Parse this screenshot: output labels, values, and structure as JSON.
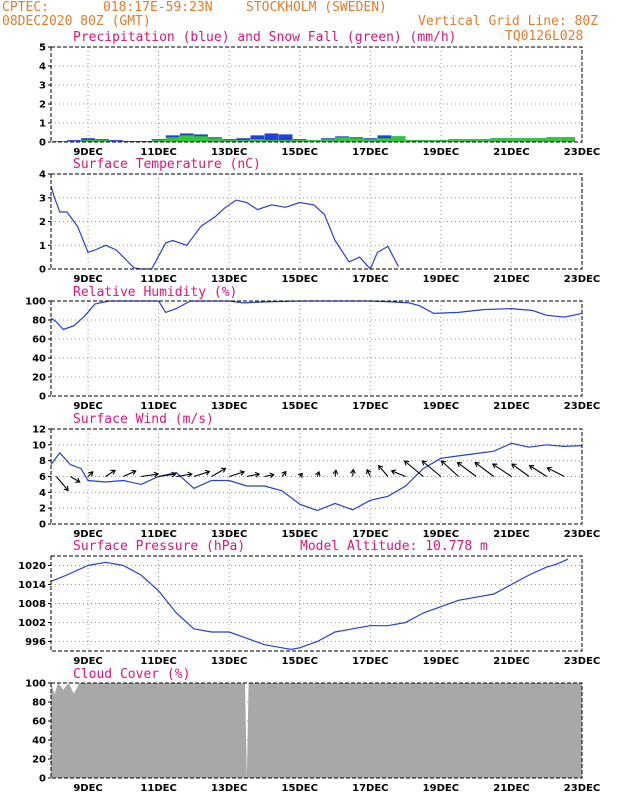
{
  "header": {
    "source": "CPTEC:",
    "coords": "018:17E-59:23N",
    "location": "STOCKHOLM (SWEDEN)",
    "run": "08DEC2020 80Z (GMT)",
    "grid_note": "Vertical Grid Line: 80Z",
    "model": "TQ0126L028"
  },
  "x_axis": {
    "ticks": [
      {
        "day": 9,
        "label": "9DEC"
      },
      {
        "day": 11,
        "label": "11DEC"
      },
      {
        "day": 13,
        "label": "13DEC"
      },
      {
        "day": 15,
        "label": "15DEC"
      },
      {
        "day": 17,
        "label": "17DEC"
      },
      {
        "day": 19,
        "label": "19DEC"
      },
      {
        "day": 21,
        "label": "21DEC"
      },
      {
        "day": 23,
        "label": "23DEC"
      }
    ],
    "range_days": [
      7.95,
      23.0
    ]
  },
  "chart_data": [
    {
      "id": "precip",
      "type": "bar",
      "title": "Precipitation (blue) and Snow Fall (green) (mm/h)",
      "ylim": [
        0,
        5
      ],
      "yticks": [
        "0",
        "1",
        "2",
        "3",
        "4",
        "5"
      ],
      "colors": {
        "precip": "#2540d8",
        "snow": "#2ec92e"
      },
      "x": [
        8.2,
        8.6,
        9.0,
        9.4,
        9.8,
        10.2,
        10.6,
        11.0,
        11.4,
        11.8,
        12.2,
        12.6,
        13.0,
        13.4,
        13.8,
        14.2,
        14.6,
        15.0,
        15.4,
        15.8,
        16.2,
        16.6,
        17.0,
        17.4,
        17.8,
        18.2,
        18.6,
        19.0,
        19.4,
        19.8,
        20.2,
        20.6,
        21.0,
        21.4,
        21.8,
        22.2,
        22.6
      ],
      "precip": [
        0.05,
        0.1,
        0.2,
        0.15,
        0.1,
        0.05,
        0.05,
        0.15,
        0.35,
        0.45,
        0.4,
        0.25,
        0.15,
        0.2,
        0.35,
        0.45,
        0.4,
        0.15,
        0.1,
        0.2,
        0.3,
        0.25,
        0.2,
        0.35,
        0.3,
        0.1,
        0.1,
        0.1,
        0.15,
        0.15,
        0.15,
        0.2,
        0.2,
        0.2,
        0.2,
        0.25,
        0.25
      ],
      "snow": [
        0.05,
        0.05,
        0.1,
        0.1,
        0.05,
        0.0,
        0.0,
        0.1,
        0.25,
        0.35,
        0.3,
        0.2,
        0.1,
        0.1,
        0.15,
        0.1,
        0.1,
        0.1,
        0.1,
        0.15,
        0.25,
        0.2,
        0.15,
        0.2,
        0.3,
        0.1,
        0.1,
        0.1,
        0.15,
        0.15,
        0.15,
        0.2,
        0.2,
        0.2,
        0.2,
        0.25,
        0.25
      ]
    },
    {
      "id": "temp",
      "type": "line",
      "title": "Surface Temperature (nC)",
      "ylim": [
        0,
        4
      ],
      "yticks": [
        "0",
        "1",
        "2",
        "3",
        "4"
      ],
      "x": [
        7.95,
        8.05,
        8.2,
        8.4,
        8.7,
        9.0,
        9.2,
        9.5,
        9.8,
        10.3,
        10.5,
        10.8,
        11.2,
        11.4,
        11.8,
        12.2,
        12.6,
        12.9,
        13.2,
        13.5,
        13.8,
        14.2,
        14.6,
        15.0,
        15.4,
        15.7,
        16.0,
        16.4,
        16.7,
        17.0,
        17.2,
        17.5,
        17.8
      ],
      "values": [
        3.5,
        3.0,
        2.4,
        2.4,
        1.8,
        0.7,
        0.8,
        1.0,
        0.8,
        0.05,
        0.0,
        0.0,
        1.1,
        1.2,
        1.0,
        1.8,
        2.2,
        2.6,
        2.9,
        2.8,
        2.5,
        2.7,
        2.6,
        2.8,
        2.7,
        2.3,
        1.2,
        0.3,
        0.5,
        0.0,
        0.7,
        0.95,
        0.1
      ]
    },
    {
      "id": "rh",
      "type": "line",
      "title": "Relative Humidity (%)",
      "ylim": [
        0,
        100
      ],
      "yticks": [
        "0",
        "20",
        "40",
        "60",
        "80",
        "100"
      ],
      "x": [
        7.95,
        8.1,
        8.3,
        8.6,
        8.9,
        9.2,
        9.6,
        10.0,
        10.5,
        11.0,
        11.2,
        11.5,
        11.9,
        12.2,
        12.6,
        13.0,
        13.4,
        14.0,
        15.0,
        16.0,
        17.0,
        17.6,
        18.1,
        18.4,
        18.8,
        19.5,
        20.2,
        21.0,
        21.6,
        22.0,
        22.5,
        23.0
      ],
      "values": [
        82,
        78,
        70,
        74,
        84,
        97,
        100,
        100,
        100,
        100,
        88,
        92,
        100,
        100,
        100,
        100,
        98,
        99,
        100,
        100,
        100,
        99,
        98,
        95,
        87,
        88,
        91,
        92,
        90,
        85,
        83,
        87
      ]
    },
    {
      "id": "wind",
      "type": "line",
      "title": "Surface Wind (m/s)",
      "ylim": [
        0,
        12
      ],
      "yticks": [
        "0",
        "2",
        "4",
        "6",
        "8",
        "10",
        "12"
      ],
      "x": [
        7.95,
        8.2,
        8.5,
        8.8,
        9.0,
        9.5,
        10.0,
        10.5,
        11.0,
        11.5,
        12.0,
        12.5,
        13.0,
        13.5,
        14.0,
        14.5,
        15.0,
        15.5,
        16.0,
        16.5,
        17.0,
        17.5,
        18.0,
        18.5,
        19.0,
        19.5,
        20.0,
        20.5,
        21.0,
        21.5,
        22.0,
        22.5,
        23.0
      ],
      "values": [
        7.5,
        9.0,
        7.5,
        7.0,
        5.5,
        5.3,
        5.5,
        5.0,
        6.0,
        6.5,
        4.5,
        5.5,
        5.5,
        4.8,
        4.8,
        4.2,
        2.5,
        1.7,
        2.6,
        1.8,
        3.0,
        3.5,
        4.8,
        7.0,
        8.3,
        8.6,
        8.9,
        9.2,
        10.2,
        9.7,
        10.0,
        9.8,
        9.9
      ],
      "wind_vectors": [
        {
          "day": 8.1,
          "u": 3.8,
          "v": -4.5
        },
        {
          "day": 8.5,
          "u": 3.0,
          "v": -1.8
        },
        {
          "day": 9.0,
          "u": 1.5,
          "v": 1.5
        },
        {
          "day": 9.5,
          "u": 3.0,
          "v": 2.0
        },
        {
          "day": 10.0,
          "u": 4.0,
          "v": 1.8
        },
        {
          "day": 10.5,
          "u": 5.5,
          "v": 0.8
        },
        {
          "day": 11.0,
          "u": 5.5,
          "v": 0.8
        },
        {
          "day": 11.5,
          "u": 5.0,
          "v": 0.8
        },
        {
          "day": 12.0,
          "u": 5.0,
          "v": 1.6
        },
        {
          "day": 12.5,
          "u": 4.5,
          "v": 2.6
        },
        {
          "day": 13.0,
          "u": 4.8,
          "v": 1.5
        },
        {
          "day": 13.5,
          "u": 4.0,
          "v": 0.8
        },
        {
          "day": 14.0,
          "u": 3.0,
          "v": 0.6
        },
        {
          "day": 14.5,
          "u": 1.2,
          "v": 1.6
        },
        {
          "day": 15.0,
          "u": 0.8,
          "v": 1.0
        },
        {
          "day": 15.5,
          "u": 0.5,
          "v": 1.5
        },
        {
          "day": 16.0,
          "u": 0.3,
          "v": 2.0
        },
        {
          "day": 16.5,
          "u": 0.2,
          "v": 2.2
        },
        {
          "day": 17.0,
          "u": -1.0,
          "v": 2.2
        },
        {
          "day": 17.5,
          "u": -3.0,
          "v": 3.5
        },
        {
          "day": 18.0,
          "u": -4.5,
          "v": 1.8
        },
        {
          "day": 18.5,
          "u": -6.0,
          "v": 5.0
        },
        {
          "day": 19.0,
          "u": -6.0,
          "v": 5.0
        },
        {
          "day": 19.5,
          "u": -5.5,
          "v": 5.0
        },
        {
          "day": 20.0,
          "u": -6.0,
          "v": 4.5
        },
        {
          "day": 20.5,
          "u": -6.0,
          "v": 4.5
        },
        {
          "day": 21.0,
          "u": -6.0,
          "v": 4.0
        },
        {
          "day": 21.5,
          "u": -5.5,
          "v": 4.0
        },
        {
          "day": 22.0,
          "u": -5.5,
          "v": 3.5
        },
        {
          "day": 22.5,
          "u": -5.5,
          "v": 2.8
        }
      ]
    },
    {
      "id": "pressure",
      "type": "line",
      "title": "Surface Pressure (hPa)",
      "subtitle": "Model Altitude: 10.778 m",
      "ylim": [
        993,
        1023
      ],
      "yticks": [
        "996",
        "1002",
        "1008",
        "1014",
        "1020"
      ],
      "x": [
        7.95,
        8.4,
        9.0,
        9.5,
        10.0,
        10.5,
        11.0,
        11.5,
        12.0,
        12.5,
        13.0,
        13.5,
        14.0,
        14.5,
        14.75,
        15.0,
        15.5,
        16.0,
        16.5,
        17.0,
        17.5,
        18.0,
        18.5,
        19.0,
        19.5,
        20.0,
        20.5,
        21.0,
        21.5,
        22.0,
        22.3,
        22.6
      ],
      "values": [
        1015,
        1017,
        1020,
        1021,
        1020,
        1017,
        1012,
        1005,
        1000,
        999,
        999,
        997,
        995,
        994,
        993.5,
        994,
        996,
        999,
        1000,
        1001,
        1001,
        1002,
        1005,
        1007,
        1009,
        1010,
        1011,
        1014,
        1017,
        1019.5,
        1020.5,
        1022
      ]
    },
    {
      "id": "cloud",
      "type": "area",
      "title": "Cloud Cover (%)",
      "ylim": [
        0,
        100
      ],
      "yticks": [
        "0",
        "20",
        "40",
        "60",
        "80",
        "100"
      ],
      "color": "#a8a8a8",
      "x": [
        7.95,
        8.05,
        8.15,
        8.3,
        8.45,
        8.6,
        8.75,
        8.9,
        13.45,
        13.5,
        13.55,
        23.0
      ],
      "values": [
        100,
        88,
        100,
        93,
        100,
        89,
        100,
        100,
        100,
        0,
        100,
        100
      ]
    }
  ]
}
